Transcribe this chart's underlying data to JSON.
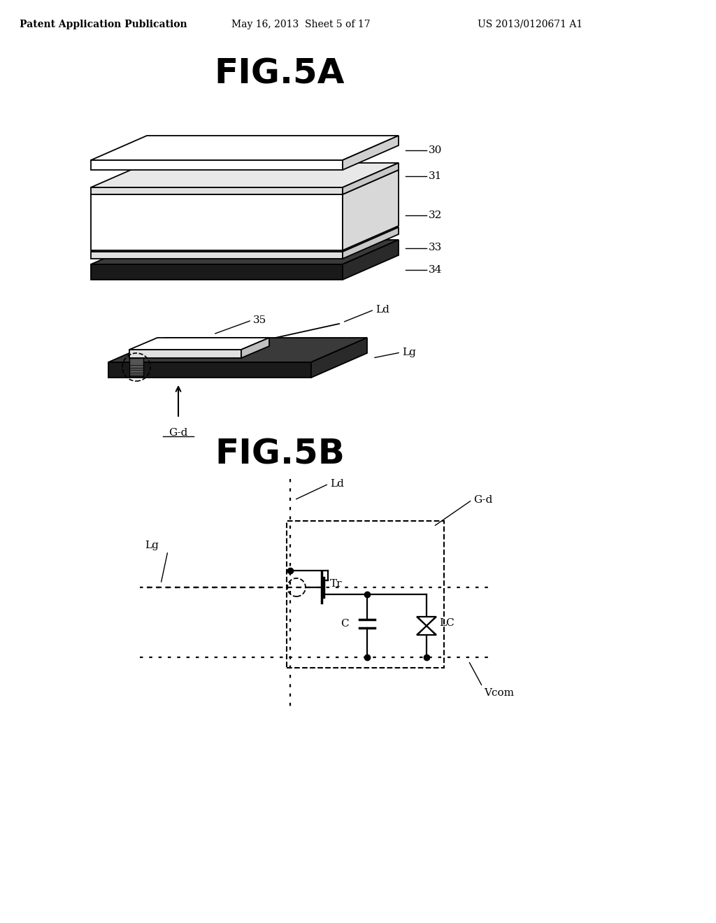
{
  "bg_color": "#ffffff",
  "header_left": "Patent Application Publication",
  "header_mid": "May 16, 2013  Sheet 5 of 17",
  "header_right": "US 2013/0120671 A1",
  "fig5a_title": "FIG.5A",
  "fig5b_title": "FIG.5B",
  "labels_5a": [
    "30",
    "31",
    "32",
    "33",
    "34",
    "Ld",
    "35",
    "Lg",
    "G-d"
  ],
  "labels_5b": [
    "Ld",
    "G-d",
    "Lg",
    "Tr",
    "C",
    "LC",
    "Vcom"
  ]
}
